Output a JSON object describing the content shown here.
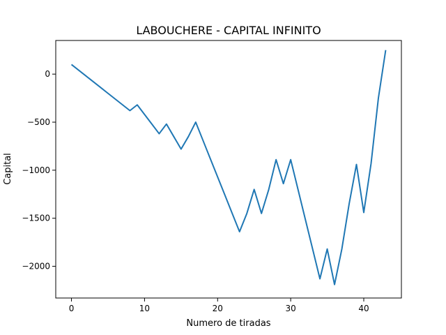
{
  "chart_data": {
    "type": "line",
    "title": "LABOUCHERE - CAPITAL INFINITO",
    "xlabel": "Numero de tiradas",
    "ylabel": "Capital",
    "xlim": [
      -2.15,
      45.15
    ],
    "ylim": [
      -2330,
      350
    ],
    "xticks": [
      0,
      10,
      20,
      30,
      40
    ],
    "xtick_labels": [
      "0",
      "10",
      "20",
      "30",
      "40"
    ],
    "yticks": [
      0,
      -500,
      -1000,
      -1500,
      -2000
    ],
    "ytick_labels": [
      "0",
      "−500",
      "−1000",
      "−1500",
      "−2000"
    ],
    "grid": false,
    "series": [
      {
        "color": "#1f77b4",
        "x": [
          0,
          1,
          2,
          3,
          4,
          5,
          6,
          7,
          8,
          9,
          10,
          11,
          12,
          13,
          14,
          15,
          16,
          17,
          18,
          19,
          20,
          21,
          22,
          23,
          24,
          25,
          26,
          27,
          28,
          29,
          30,
          31,
          32,
          33,
          34,
          35,
          36,
          37,
          38,
          39,
          40,
          41,
          42,
          43
        ],
        "y": [
          100,
          40,
          -20,
          -80,
          -140,
          -200,
          -260,
          -320,
          -380,
          -320,
          -420,
          -520,
          -620,
          -520,
          -650,
          -780,
          -650,
          -500,
          -690,
          -880,
          -1070,
          -1260,
          -1450,
          -1640,
          -1450,
          -1200,
          -1450,
          -1200,
          -890,
          -1140,
          -890,
          -1200,
          -1510,
          -1820,
          -2130,
          -1820,
          -2190,
          -1820,
          -1350,
          -940,
          -1440,
          -930,
          -250,
          250
        ]
      }
    ]
  }
}
